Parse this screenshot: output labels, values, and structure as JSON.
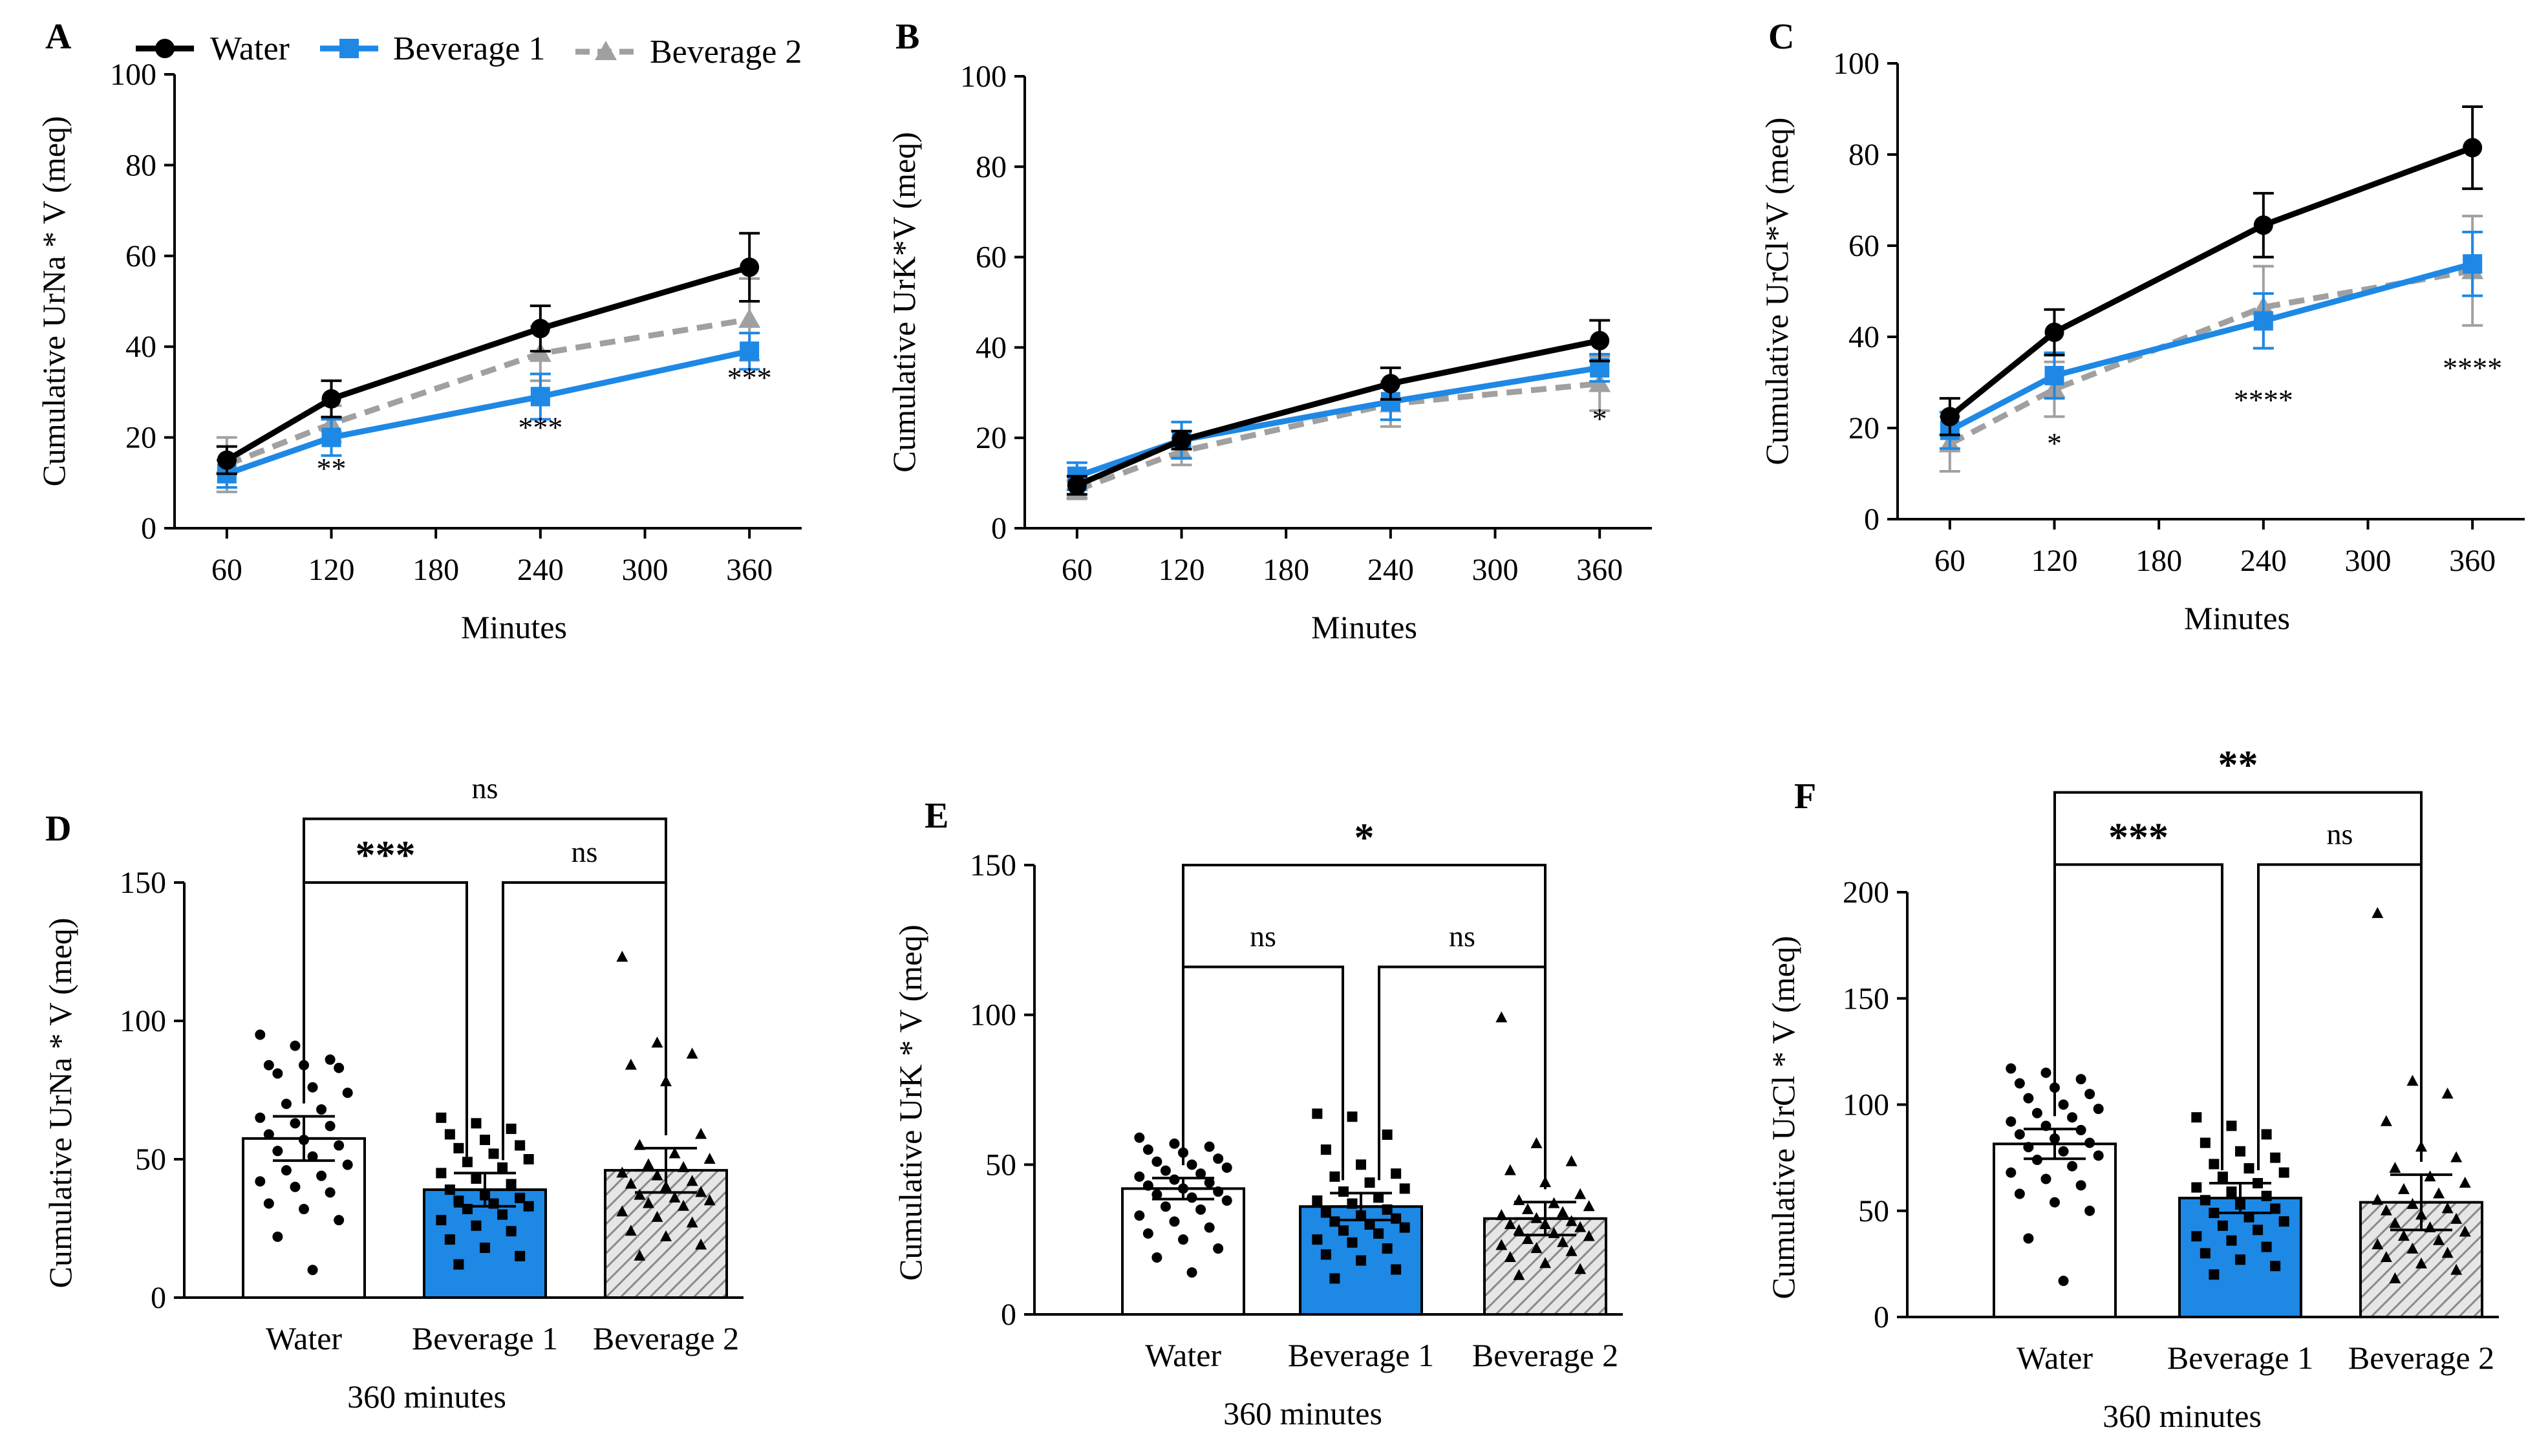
{
  "legend": [
    {
      "name": "Water",
      "color": "#000000",
      "marker": "circle",
      "dash": false
    },
    {
      "name": "Beverage 1",
      "color": "#1e88e5",
      "marker": "square",
      "dash": false
    },
    {
      "name": "Beverage 2",
      "color": "#a0a0a0",
      "marker": "triangle",
      "dash": true
    }
  ],
  "chart_data": [
    {
      "panel": "A",
      "type": "line",
      "xlabel": "Minutes",
      "ylabel": "Cumulative UrNa * V (meq)",
      "xlim": [
        30,
        390
      ],
      "xticks": [
        60,
        120,
        180,
        240,
        300,
        360
      ],
      "ylim": [
        0,
        100
      ],
      "yticks": [
        0,
        20,
        40,
        60,
        80,
        100
      ],
      "series": [
        {
          "name": "Water",
          "x": [
            60,
            120,
            240,
            360
          ],
          "values": [
            15,
            28.5,
            44,
            57.5
          ],
          "err": [
            3,
            4,
            5,
            7.5
          ]
        },
        {
          "name": "Beverage 1",
          "x": [
            60,
            120,
            240,
            360
          ],
          "values": [
            12,
            20,
            29,
            39
          ],
          "err": [
            3,
            4,
            5,
            4
          ]
        },
        {
          "name": "Beverage 2",
          "x": [
            60,
            120,
            240,
            360
          ],
          "values": [
            14,
            23,
            38.5,
            46
          ],
          "err": [
            6,
            4,
            6,
            9
          ]
        }
      ],
      "annotations": [
        {
          "x": 120,
          "y": 11,
          "text": "**"
        },
        {
          "x": 240,
          "y": 20,
          "text": "***"
        },
        {
          "x": 360,
          "y": 31,
          "text": "***"
        }
      ]
    },
    {
      "panel": "B",
      "type": "line",
      "xlabel": "Minutes",
      "ylabel": "Cumulative UrK*V (meq)",
      "xlim": [
        30,
        390
      ],
      "xticks": [
        60,
        120,
        180,
        240,
        300,
        360
      ],
      "ylim": [
        0,
        100
      ],
      "yticks": [
        0,
        20,
        40,
        60,
        80,
        100
      ],
      "series": [
        {
          "name": "Water",
          "x": [
            60,
            120,
            240,
            360
          ],
          "values": [
            9.5,
            19.5,
            32,
            41.5
          ],
          "err": [
            2,
            2,
            3.5,
            4.5
          ]
        },
        {
          "name": "Beverage 1",
          "x": [
            60,
            120,
            240,
            360
          ],
          "values": [
            11.5,
            19.5,
            28,
            35.5
          ],
          "err": [
            3,
            4,
            4,
            3
          ]
        },
        {
          "name": "Beverage 2",
          "x": [
            60,
            120,
            240,
            360
          ],
          "values": [
            8.5,
            17,
            27.5,
            32
          ],
          "err": [
            2,
            3,
            5,
            6
          ]
        }
      ],
      "annotations": [
        {
          "x": 360,
          "y": 22,
          "text": "*"
        }
      ]
    },
    {
      "panel": "C",
      "type": "line",
      "xlabel": "Minutes",
      "ylabel": "Cumulative UrCl*V (meq)",
      "xlim": [
        30,
        390
      ],
      "xticks": [
        60,
        120,
        180,
        240,
        300,
        360
      ],
      "ylim": [
        0,
        100
      ],
      "yticks": [
        0,
        20,
        40,
        60,
        80,
        100
      ],
      "series": [
        {
          "name": "Water",
          "x": [
            60,
            120,
            240,
            360
          ],
          "values": [
            22.5,
            41,
            64.5,
            81.5
          ],
          "err": [
            4,
            5,
            7,
            9
          ]
        },
        {
          "name": "Beverage 1",
          "x": [
            60,
            120,
            240,
            360
          ],
          "values": [
            19.5,
            31.5,
            43.5,
            56
          ],
          "err": [
            4,
            5,
            6,
            7
          ]
        },
        {
          "name": "Beverage 2",
          "x": [
            60,
            120,
            240,
            360
          ],
          "values": [
            16.5,
            28.5,
            46.5,
            54.5
          ],
          "err": [
            6,
            6,
            9,
            12
          ]
        }
      ],
      "annotations": [
        {
          "x": 120,
          "y": 14.5,
          "text": "*"
        },
        {
          "x": 240,
          "y": 24,
          "text": "****"
        },
        {
          "x": 360,
          "y": 31,
          "text": "****"
        }
      ]
    },
    {
      "panel": "D",
      "type": "bar",
      "categories": [
        "Water",
        "Beverage 1",
        "Beverage 2"
      ],
      "values": [
        57.5,
        39,
        46
      ],
      "err": [
        8,
        6,
        8
      ],
      "xlabel": "360 minutes",
      "ylabel": "Cumulative UrNa * V (meq)",
      "ylim": [
        0,
        150
      ],
      "yticks": [
        0,
        50,
        100,
        150
      ],
      "points": [
        [
          95,
          91,
          86,
          84,
          84,
          83,
          81,
          76,
          74,
          70,
          68,
          65,
          63,
          62,
          59,
          57,
          55,
          53,
          51,
          48,
          46,
          44,
          42,
          40,
          38,
          34,
          32,
          28,
          22,
          10
        ],
        [
          65,
          63,
          61,
          59,
          57,
          55,
          54,
          52,
          50,
          49,
          47,
          45,
          43,
          41,
          39,
          37,
          36,
          35,
          34,
          33,
          32,
          30,
          28,
          26,
          24,
          21,
          18,
          15,
          12
        ],
        [
          123,
          92,
          88,
          84,
          78,
          59,
          55,
          52,
          50,
          48,
          47,
          45,
          44,
          42,
          41,
          40,
          38,
          37,
          36,
          35,
          34,
          33,
          31,
          29,
          27,
          24,
          22,
          19,
          15
        ]
      ],
      "brackets": [
        {
          "from": 0,
          "to": 1,
          "level": 150,
          "text": "***"
        },
        {
          "from": 1,
          "to": 2,
          "level": 150,
          "text": "ns"
        },
        {
          "from": 0,
          "to": 2,
          "level": 173,
          "text": "ns"
        }
      ]
    },
    {
      "panel": "E",
      "type": "bar",
      "categories": [
        "Water",
        "Beverage 1",
        "Beverage 2"
      ],
      "values": [
        42,
        36,
        32
      ],
      "err": [
        3.5,
        4.5,
        5.5
      ],
      "xlabel": "360 minutes",
      "ylabel": "Cumulative UrK * V (meq)",
      "ylim": [
        0,
        150
      ],
      "yticks": [
        0,
        50,
        100,
        150
      ],
      "points": [
        [
          59,
          57,
          56,
          55,
          54,
          52,
          51,
          50,
          49,
          48,
          47,
          46,
          45,
          44,
          43,
          42,
          41,
          40,
          39,
          38,
          36,
          35,
          33,
          31,
          29,
          27,
          25,
          22,
          19,
          14
        ],
        [
          67,
          66,
          60,
          55,
          50,
          47,
          46,
          44,
          42,
          41,
          39,
          38,
          37,
          35,
          34,
          33,
          32,
          31,
          30,
          29,
          28,
          27,
          25,
          24,
          22,
          20,
          18,
          15,
          12
        ],
        [
          99,
          57,
          51,
          48,
          44,
          40,
          38,
          37,
          36,
          35,
          34,
          33,
          32,
          31,
          30,
          30,
          29,
          28,
          27,
          26,
          25,
          24,
          23,
          22,
          21,
          19,
          17,
          15,
          13
        ]
      ],
      "brackets": [
        {
          "from": 0,
          "to": 1,
          "level": 116,
          "text": "ns"
        },
        {
          "from": 1,
          "to": 2,
          "level": 116,
          "text": "ns"
        },
        {
          "from": 0,
          "to": 2,
          "level": 150,
          "text": "*"
        }
      ]
    },
    {
      "panel": "F",
      "type": "bar",
      "categories": [
        "Water",
        "Beverage 1",
        "Beverage 2"
      ],
      "values": [
        81.5,
        56,
        54
      ],
      "err": [
        7,
        7,
        13
      ],
      "xlabel": "360 minutes",
      "ylabel": "Cumulative UrCl * V (meq)",
      "ylim": [
        0,
        200
      ],
      "yticks": [
        0,
        50,
        100,
        150,
        200
      ],
      "points": [
        [
          117,
          115,
          112,
          110,
          108,
          105,
          103,
          100,
          98,
          96,
          94,
          92,
          90,
          88,
          86,
          84,
          82,
          80,
          78,
          76,
          74,
          71,
          68,
          65,
          62,
          58,
          54,
          50,
          37,
          17
        ],
        [
          94,
          90,
          86,
          82,
          78,
          75,
          72,
          70,
          68,
          66,
          63,
          61,
          59,
          57,
          55,
          53,
          51,
          49,
          47,
          45,
          43,
          41,
          38,
          36,
          33,
          30,
          27,
          24,
          20
        ],
        [
          190,
          111,
          105,
          92,
          80,
          75,
          70,
          66,
          63,
          60,
          58,
          55,
          53,
          51,
          50,
          48,
          46,
          44,
          42,
          40,
          38,
          36,
          34,
          32,
          30,
          28,
          25,
          22,
          18
        ]
      ],
      "brackets": [
        {
          "from": 0,
          "to": 1,
          "level": 213,
          "text": "***"
        },
        {
          "from": 1,
          "to": 2,
          "level": 213,
          "text": "ns"
        },
        {
          "from": 0,
          "to": 2,
          "level": 247,
          "text": "**"
        }
      ]
    }
  ]
}
